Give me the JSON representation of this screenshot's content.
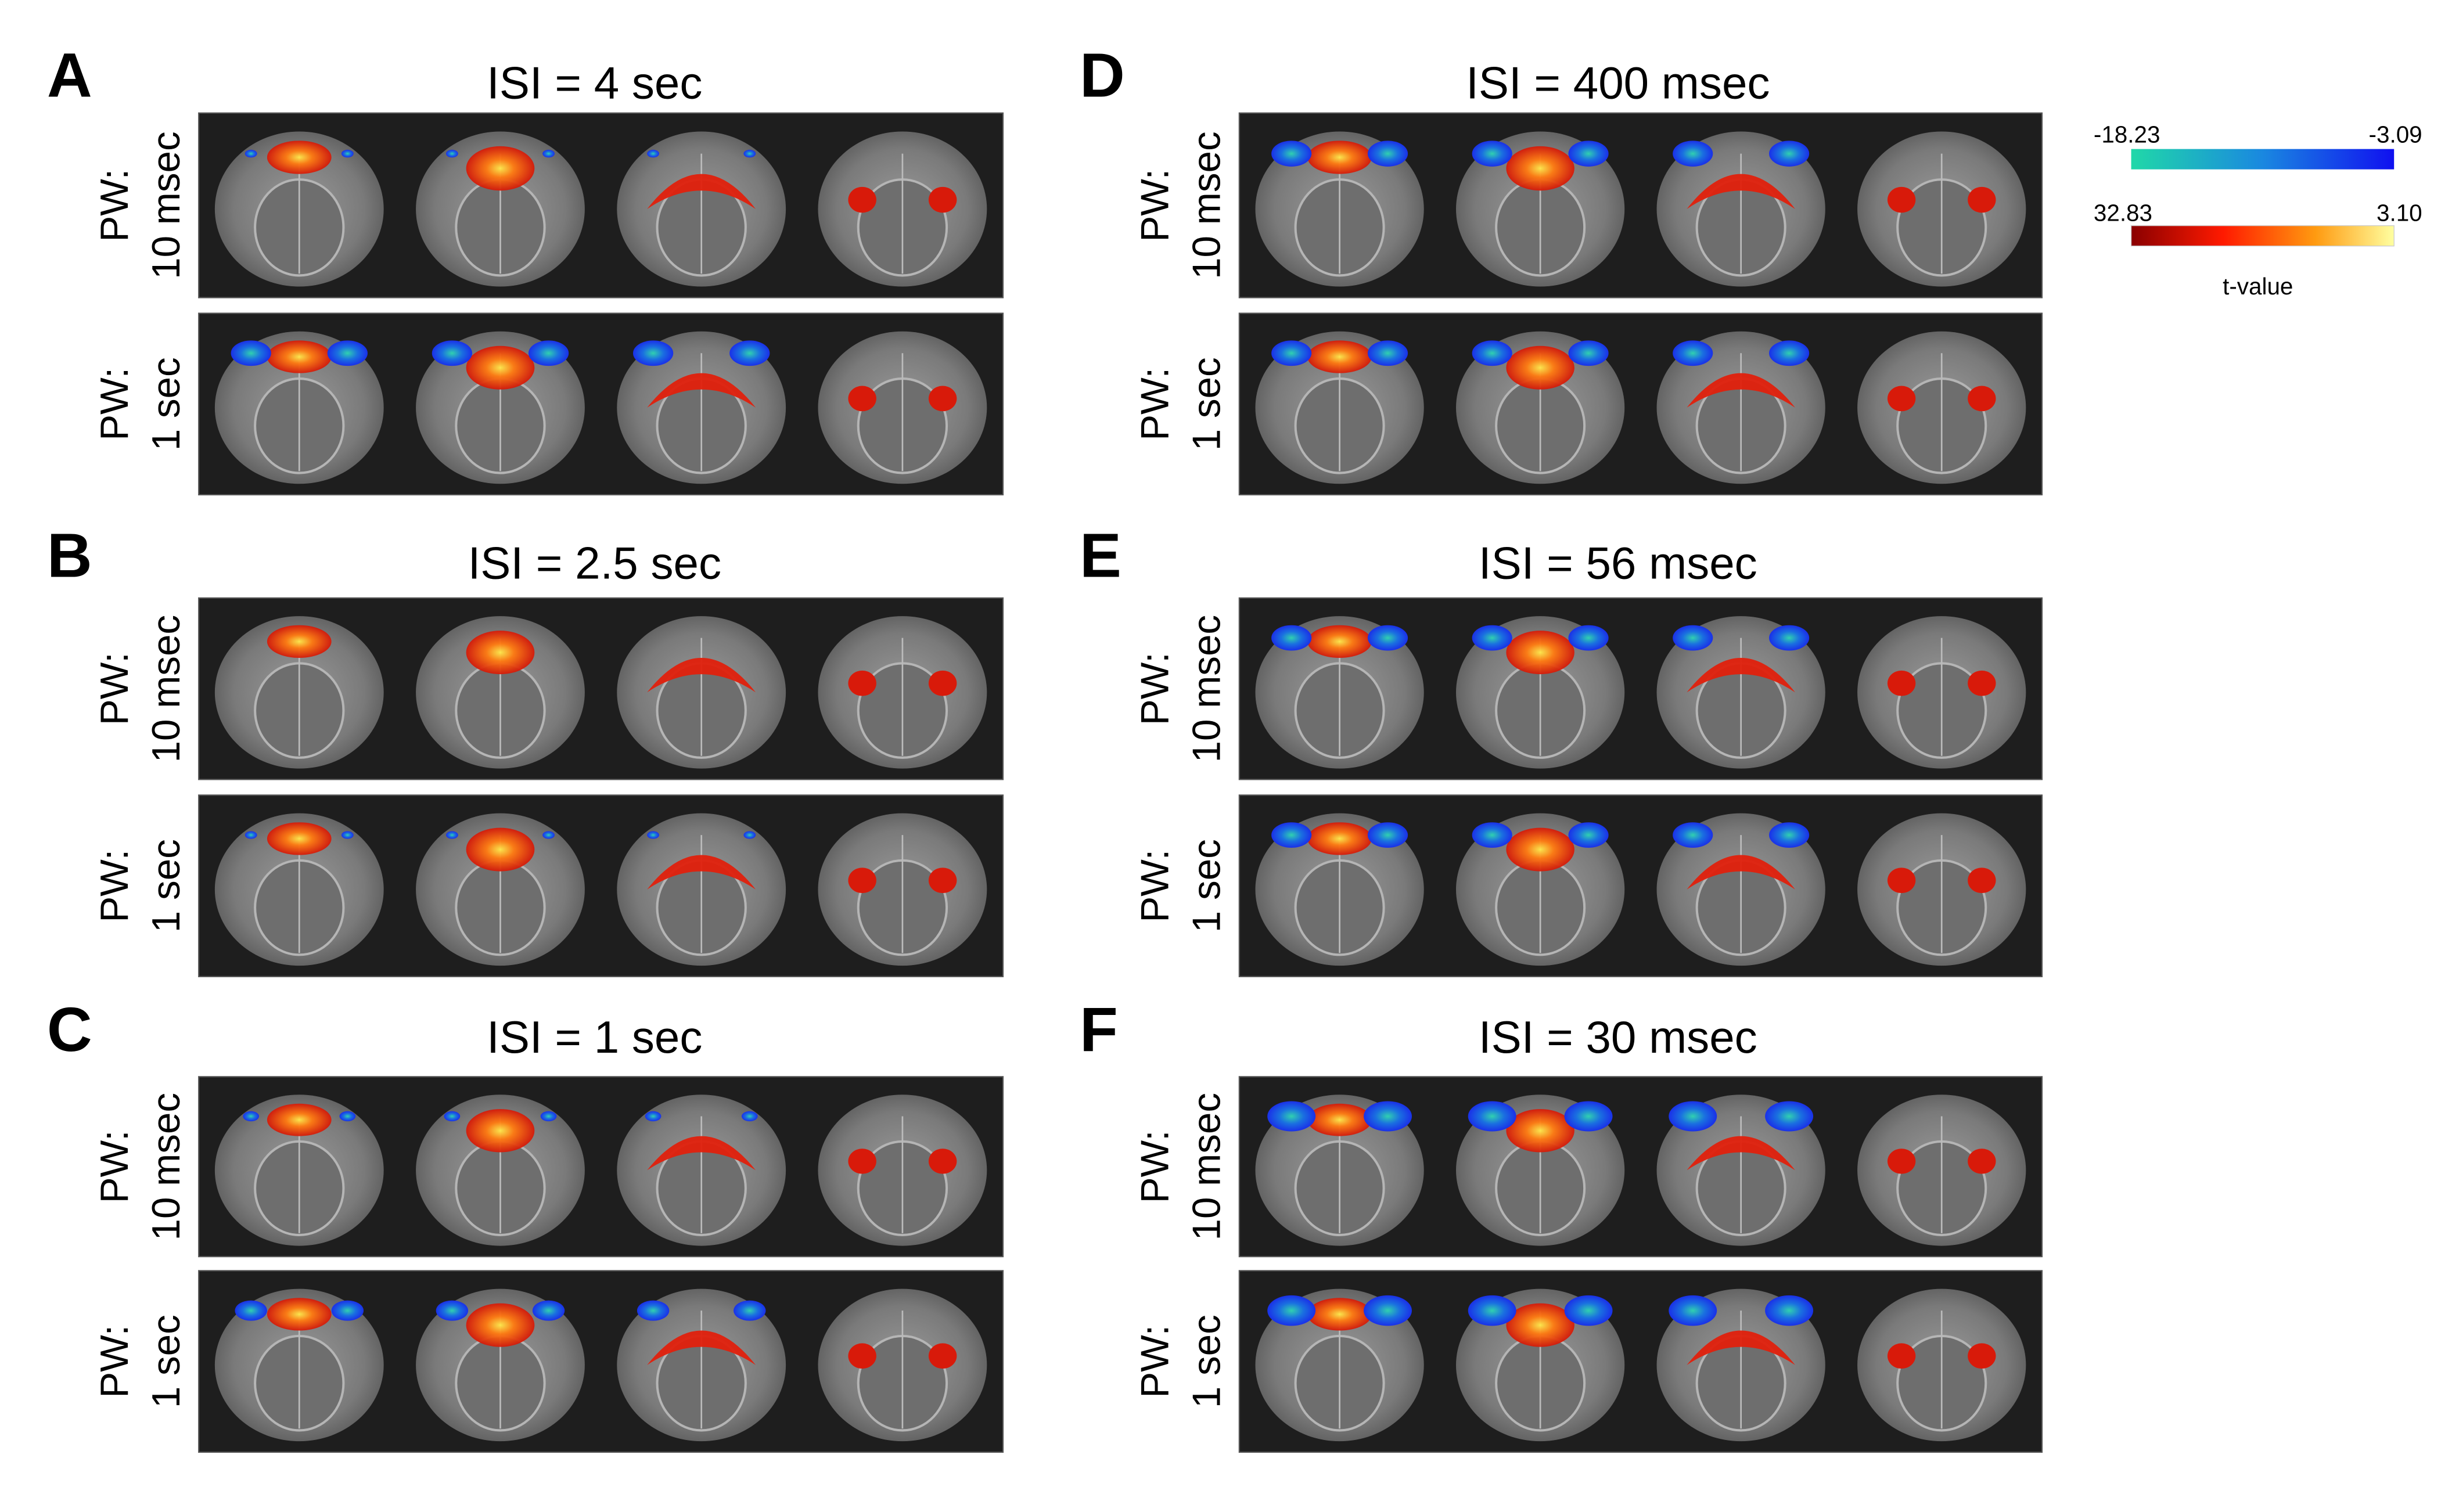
{
  "panels": [
    {
      "letter": "A",
      "title": "ISI = 4 sec",
      "rows": [
        [
          "PW:",
          "10 msec"
        ],
        [
          "PW:",
          "1 sec"
        ]
      ]
    },
    {
      "letter": "B",
      "title": "ISI = 2.5 sec",
      "rows": [
        [
          "PW:",
          "10 msec"
        ],
        [
          "PW:",
          "1 sec"
        ]
      ]
    },
    {
      "letter": "C",
      "title": "ISI = 1 sec",
      "rows": [
        [
          "PW:",
          "10 msec"
        ],
        [
          "PW:",
          "1 sec"
        ]
      ]
    },
    {
      "letter": "D",
      "title": "ISI = 400 msec",
      "rows": [
        [
          "PW:",
          "10 msec"
        ],
        [
          "PW:",
          "1 sec"
        ]
      ]
    },
    {
      "letter": "E",
      "title": "ISI = 56 msec",
      "rows": [
        [
          "PW:",
          "10 msec"
        ],
        [
          "PW:",
          "1 sec"
        ]
      ]
    },
    {
      "letter": "F",
      "title": "ISI = 30 msec",
      "rows": [
        [
          "PW:",
          "10 msec"
        ],
        [
          "PW:",
          "1 sec"
        ]
      ]
    }
  ],
  "colorbar": {
    "negative": {
      "min": "-18.23",
      "max": "-3.09"
    },
    "positive": {
      "min": "32.83",
      "max": "3.10"
    },
    "label": "t-value"
  }
}
